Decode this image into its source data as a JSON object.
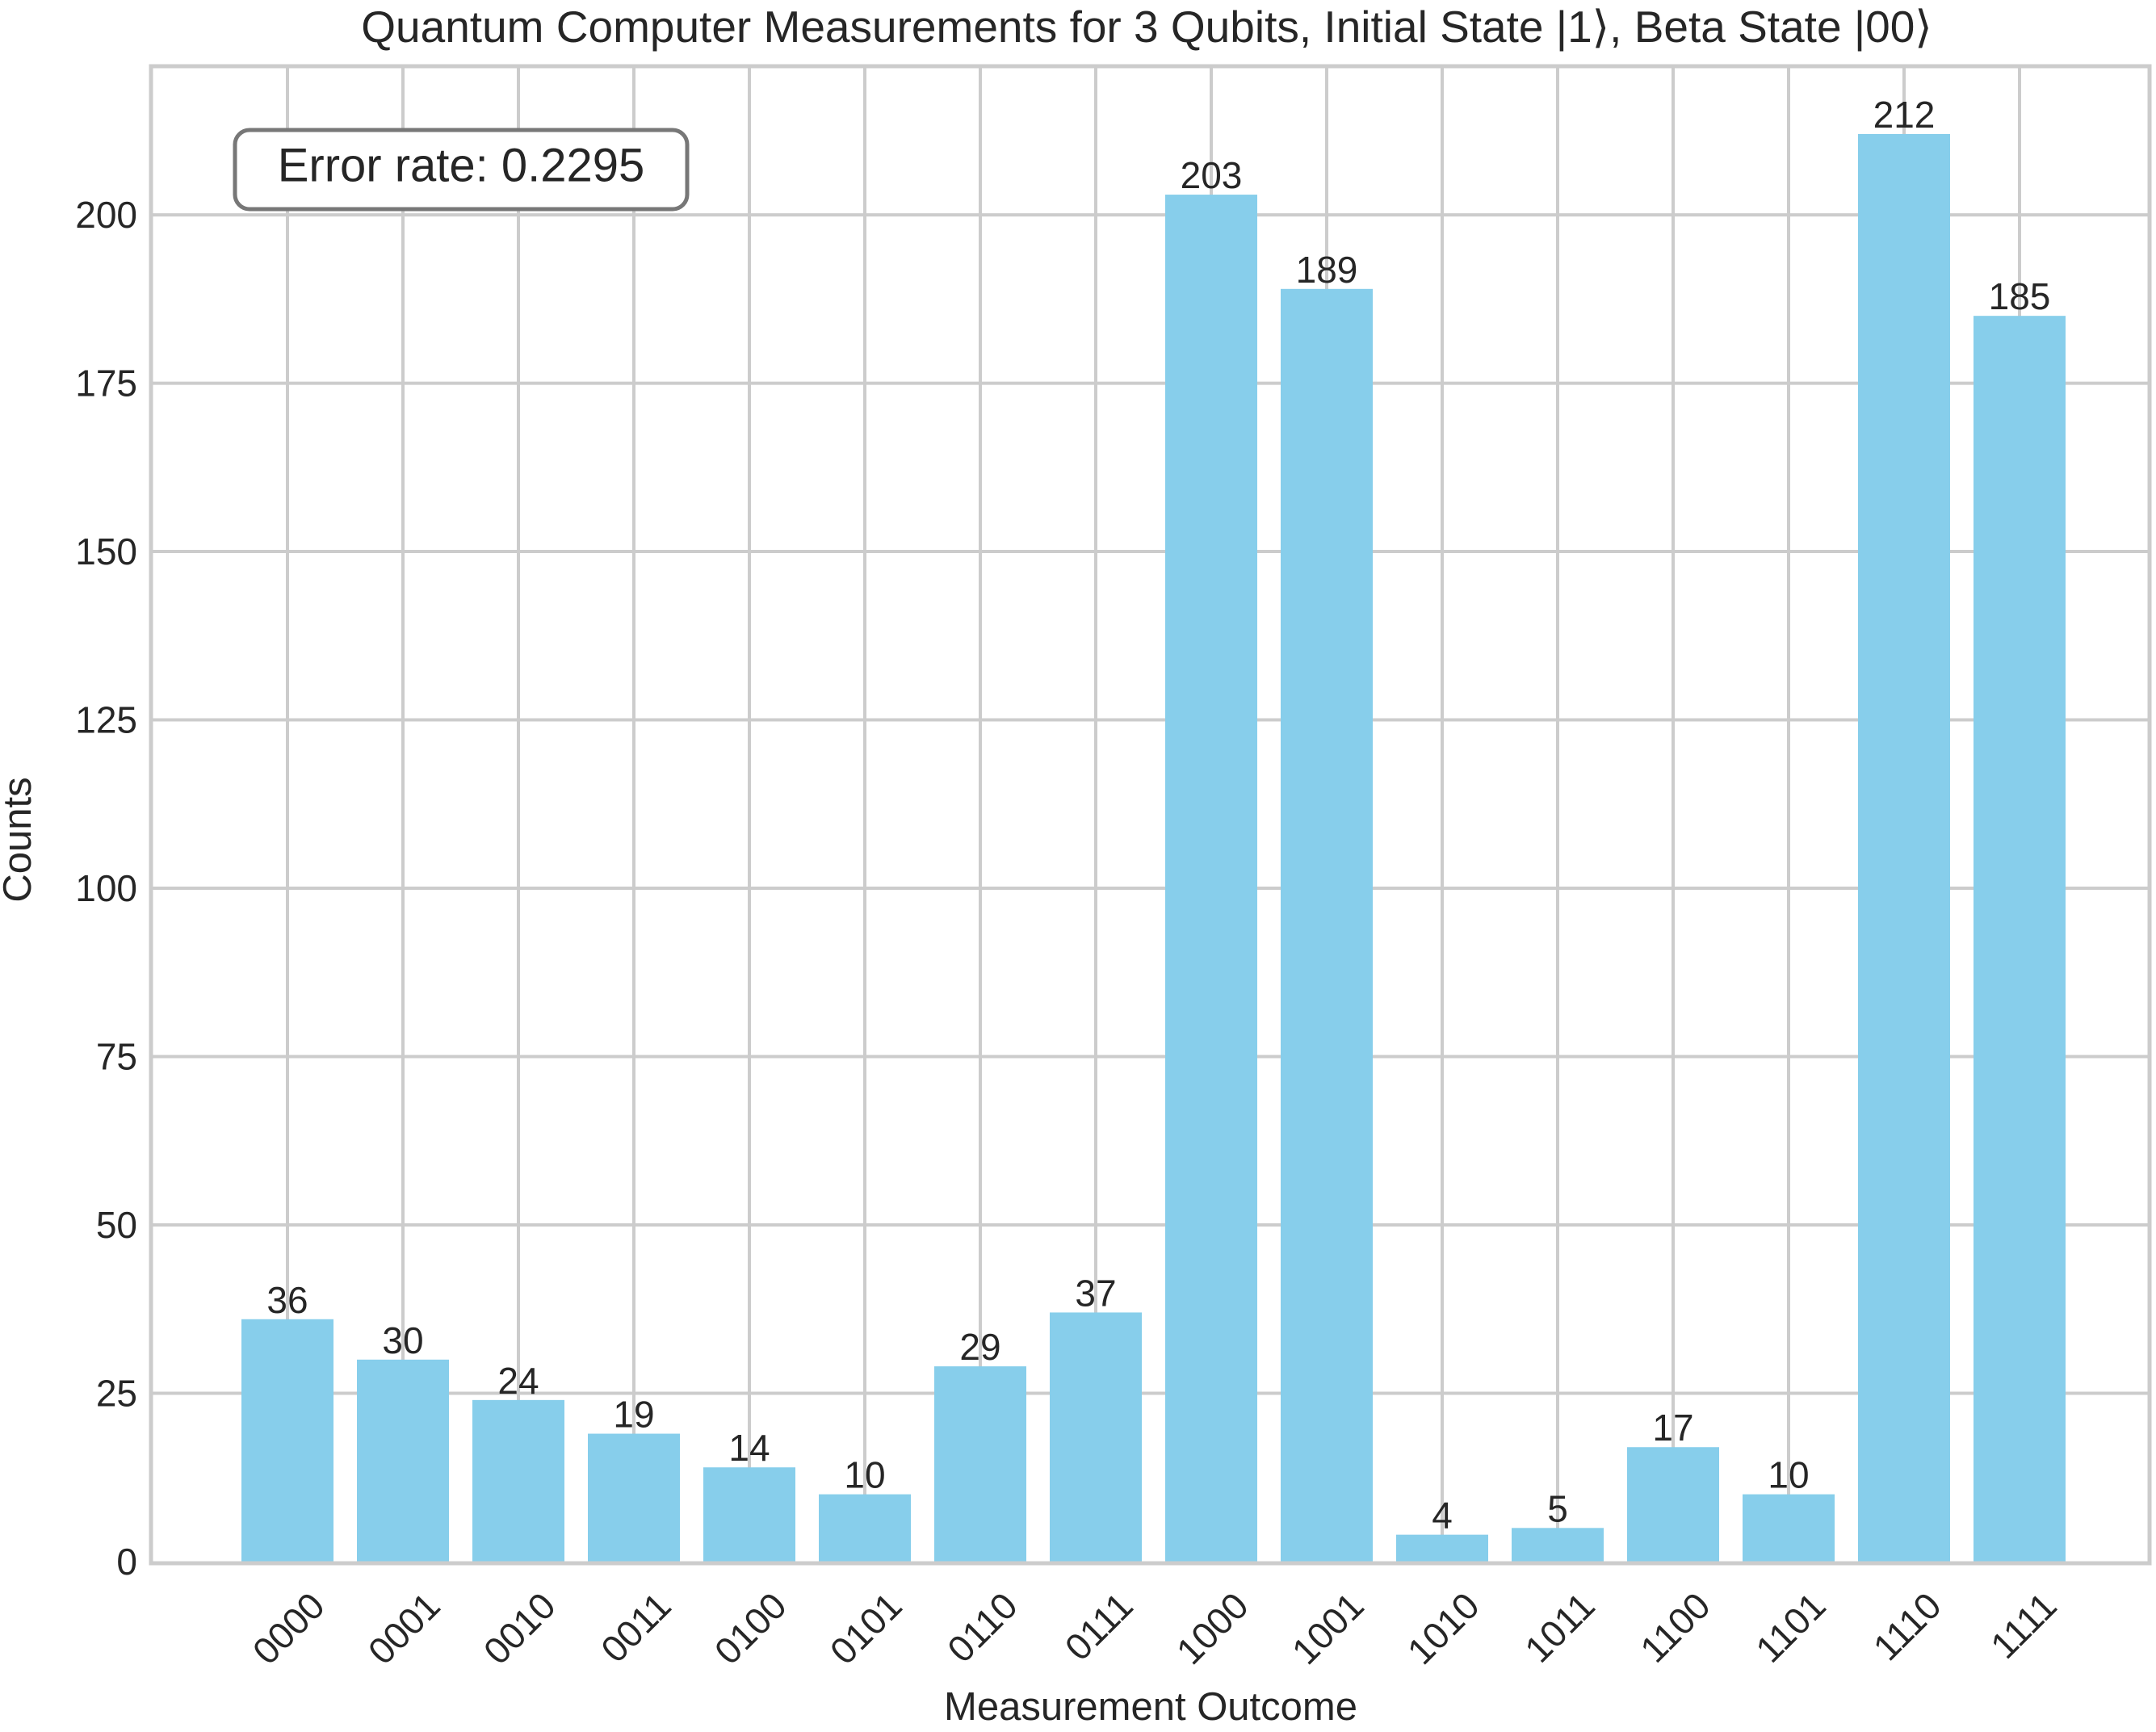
{
  "chart_data": {
    "type": "bar",
    "title": "Quantum Computer Measurements for 3 Qubits, Initial State |1⟩, Beta State |00⟩",
    "xlabel": "Measurement Outcome",
    "ylabel": "Counts",
    "categories": [
      "0000",
      "0001",
      "0010",
      "0011",
      "0100",
      "0101",
      "0110",
      "0111",
      "1000",
      "1001",
      "1010",
      "1011",
      "1100",
      "1101",
      "1110",
      "1111"
    ],
    "values": [
      36,
      30,
      24,
      19,
      14,
      10,
      29,
      37,
      203,
      189,
      4,
      5,
      17,
      10,
      212,
      185
    ],
    "ylim": [
      0,
      222.6
    ],
    "yticks": [
      0,
      25,
      50,
      75,
      100,
      125,
      150,
      175,
      200
    ],
    "grid": true,
    "bar_color": "#87ceeb",
    "annotation": "Error rate: 0.2295",
    "annotation_position": "top-left"
  }
}
